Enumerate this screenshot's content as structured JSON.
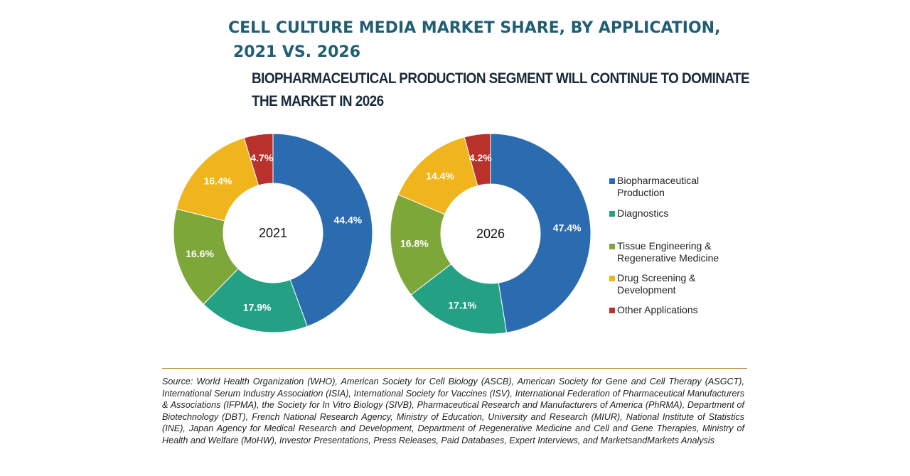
{
  "title": {
    "line1": "CELL CULTURE MEDIA MARKET SHARE, BY APPLICATION,",
    "line2": "2021 VS. 2026"
  },
  "subtitle": {
    "line1": "BIOPHARMACEUTICAL PRODUCTION SEGMENT WILL CONTINUE TO DOMINATE",
    "line2": "THE MARKET IN 2026"
  },
  "chart_data": {
    "type": "pie",
    "variant": "donut",
    "title": "CELL CULTURE MEDIA MARKET SHARE, BY APPLICATION, 2021 VS. 2026",
    "unit": "%",
    "categories": [
      "Biopharmaceutical Production",
      "Diagnostics",
      "Tissue Engineering & Regenerative Medicine",
      "Drug Screening & Development",
      "Other Applications"
    ],
    "colors": [
      "#2b6cb0",
      "#24a085",
      "#7ea73a",
      "#f0b41c",
      "#b8312b"
    ],
    "series": [
      {
        "name": "2021",
        "values": [
          44.4,
          17.9,
          16.6,
          16.4,
          4.7
        ]
      },
      {
        "name": "2026",
        "values": [
          47.4,
          17.1,
          16.8,
          14.4,
          4.2
        ]
      }
    ],
    "legend_position": "right"
  },
  "legend": {
    "items": [
      {
        "label": "Biopharmaceutical\nProduction"
      },
      {
        "label": "Diagnostics"
      },
      {
        "label": "Tissue Engineering &\nRegenerative Medicine"
      },
      {
        "label": "Drug Screening &\nDevelopment"
      },
      {
        "label": "Other Applications"
      }
    ]
  },
  "source": "Source: World Health Organization (WHO), American Society for Cell Biology (ASCB), American Society for Gene and Cell Therapy (ASGCT), International Serum Industry Association (ISIA), International Society for Vaccines (ISV), International Federation of Pharmaceutical Manufacturers & Associations (IFPMA), the Society for In Vitro Biology (SIVB), Pharmaceutical Research and Manufacturers of America (PhRMA), Department of Biotechnology (DBT), French National Research Agency, Ministry of Education, University and Research (MIUR), National Institute of Statistics (INE), Japan Agency for Medical Research and Development, Department of Regenerative Medicine and Cell and Gene Therapies, Ministry of Health and Welfare (MoHW), Investor Presentations, Press Releases, Paid Databases, Expert Interviews, and MarketsandMarkets Analysis"
}
